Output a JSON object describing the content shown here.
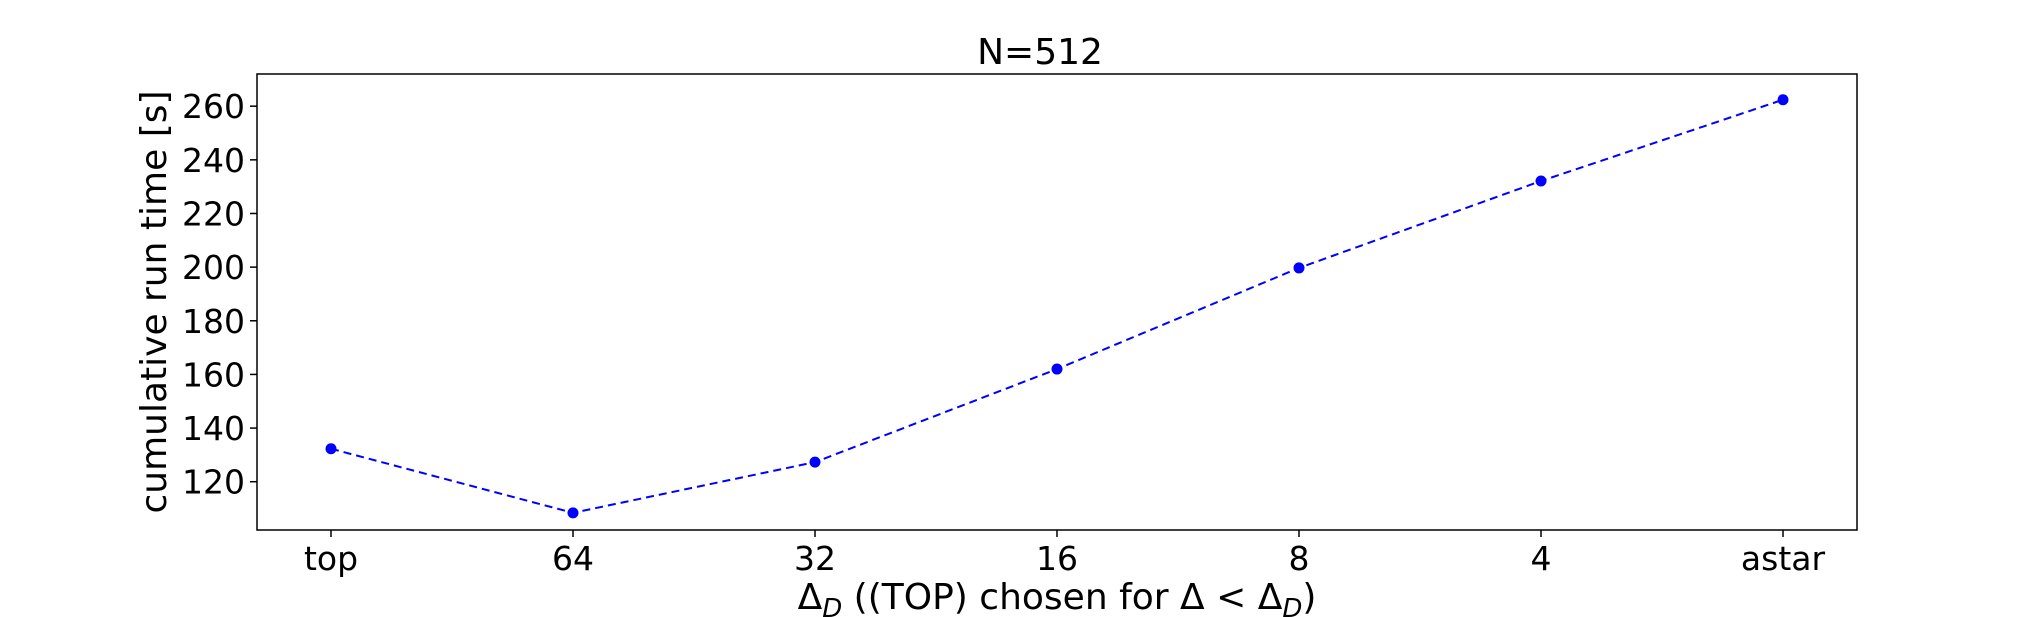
{
  "chart_data": {
    "type": "line",
    "title": "N=512",
    "xlabel": {
      "delta_symbol": "Δ",
      "sub": "D",
      "middle": " ((TOP) chosen for Δ < Δ",
      "sub2": "D",
      "end": ")"
    },
    "ylabel": "cumulative run time [s]",
    "categories": [
      "top",
      "64",
      "32",
      "16",
      "8",
      "4",
      "astar"
    ],
    "values": [
      132.3,
      108.4,
      127.3,
      162.0,
      199.7,
      232.1,
      262.4
    ],
    "ylim": [
      102,
      272
    ],
    "yticks": [
      120,
      140,
      160,
      180,
      200,
      220,
      240,
      260
    ],
    "line_style": "dashed",
    "marker": "circle",
    "grid": false,
    "colors": {
      "series": "#0000ff"
    }
  }
}
